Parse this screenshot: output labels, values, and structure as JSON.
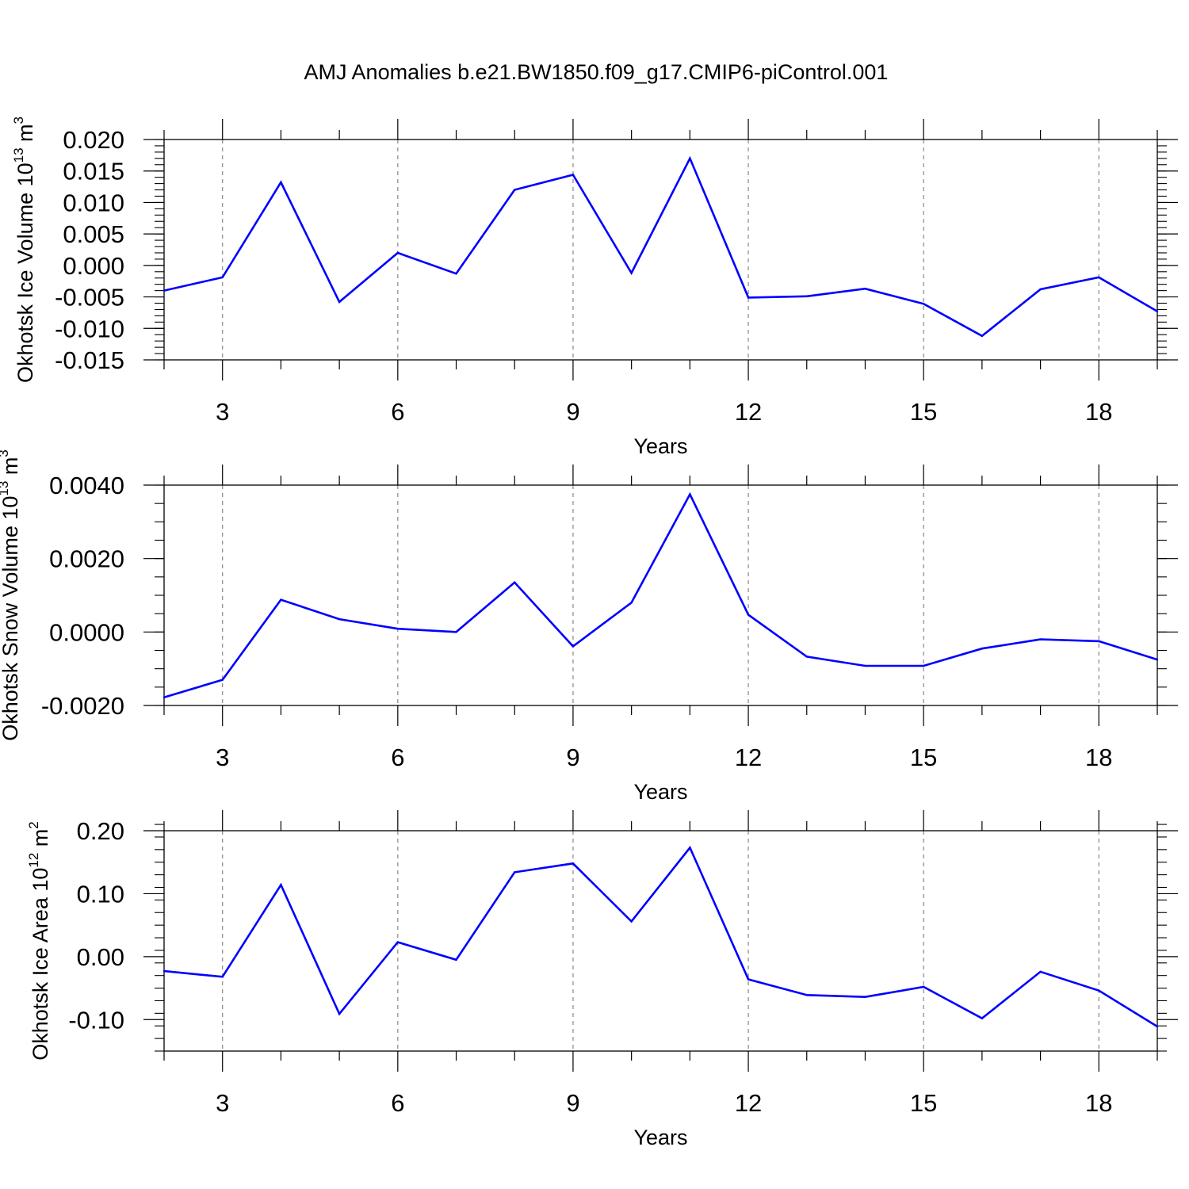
{
  "chart_data": {
    "type": "line",
    "title": "AMJ Anomalies b.e21.BW1850.f09_g17.CMIP6-piControl.001",
    "line_color": "#0000ff",
    "grid_color": "#888888",
    "panels": [
      {
        "id": "ice-volume",
        "ylabel_main": "Okhotsk Ice Volume 10",
        "ylabel_exp": "13",
        "ylabel_unit": " m",
        "ylabel_unit_exp": "3",
        "xlabel": "Years",
        "xlim": [
          2,
          19
        ],
        "ylim": [
          -0.015,
          0.02
        ],
        "x_ticks": [
          3,
          6,
          9,
          12,
          15,
          18
        ],
        "x_tick_labels": [
          "3",
          "6",
          "9",
          "12",
          "15",
          "18"
        ],
        "y_ticks": [
          -0.015,
          -0.01,
          -0.005,
          0.0,
          0.005,
          0.01,
          0.015,
          0.02
        ],
        "y_tick_labels": [
          "-0.015",
          "-0.010",
          "-0.005",
          "0.000",
          "0.005",
          "0.010",
          "0.015",
          "0.020"
        ],
        "y_minor_step": 0.001,
        "x": [
          2,
          3,
          4,
          5,
          6,
          7,
          8,
          9,
          10,
          11,
          12,
          13,
          14,
          15,
          16,
          17,
          18,
          19
        ],
        "values": [
          -0.004,
          -0.0019,
          0.0132,
          -0.0058,
          0.002,
          -0.0013,
          0.012,
          0.0144,
          -0.0012,
          0.017,
          -0.0051,
          -0.0049,
          -0.0037,
          -0.0061,
          -0.0112,
          -0.0038,
          -0.0019,
          -0.0073
        ]
      },
      {
        "id": "snow-volume",
        "ylabel_main": "Okhotsk Snow Volume 10",
        "ylabel_exp": "13",
        "ylabel_unit": " m",
        "ylabel_unit_exp": "3",
        "xlabel": "Years",
        "xlim": [
          2,
          19
        ],
        "ylim": [
          -0.002,
          0.004
        ],
        "x_ticks": [
          3,
          6,
          9,
          12,
          15,
          18
        ],
        "x_tick_labels": [
          "3",
          "6",
          "9",
          "12",
          "15",
          "18"
        ],
        "y_ticks": [
          -0.002,
          0.0,
          0.002,
          0.004
        ],
        "y_tick_labels": [
          "-0.0020",
          "0.0000",
          "0.0020",
          "0.0040"
        ],
        "y_minor_step": 0.0005,
        "x": [
          2,
          3,
          4,
          5,
          6,
          7,
          8,
          9,
          10,
          11,
          12,
          13,
          14,
          15,
          16,
          17,
          18,
          19
        ],
        "values": [
          -0.00178,
          -0.0013,
          0.00088,
          0.00035,
          9e-05,
          0.0,
          0.00135,
          -0.00039,
          0.0008,
          0.00375,
          0.00047,
          -0.00067,
          -0.00092,
          -0.00092,
          -0.00045,
          -0.0002,
          -0.00025,
          -0.00075
        ]
      },
      {
        "id": "ice-area",
        "ylabel_main": "Okhotsk Ice Area 10",
        "ylabel_exp": "12",
        "ylabel_unit": " m",
        "ylabel_unit_exp": "2",
        "xlabel": "Years",
        "xlim": [
          2,
          19
        ],
        "ylim": [
          -0.15,
          0.2
        ],
        "x_ticks": [
          3,
          6,
          9,
          12,
          15,
          18
        ],
        "x_tick_labels": [
          "3",
          "6",
          "9",
          "12",
          "15",
          "18"
        ],
        "y_ticks": [
          -0.1,
          0.0,
          0.1,
          0.2
        ],
        "y_tick_labels": [
          "-0.10",
          "0.00",
          "0.10",
          "0.20"
        ],
        "y_minor_step": 0.02,
        "x": [
          2,
          3,
          4,
          5,
          6,
          7,
          8,
          9,
          10,
          11,
          12,
          13,
          14,
          15,
          16,
          17,
          18,
          19
        ],
        "values": [
          -0.023,
          -0.032,
          0.114,
          -0.091,
          0.023,
          -0.005,
          0.134,
          0.148,
          0.056,
          0.173,
          -0.036,
          -0.061,
          -0.064,
          -0.048,
          -0.098,
          -0.024,
          -0.054,
          -0.111
        ]
      }
    ]
  }
}
